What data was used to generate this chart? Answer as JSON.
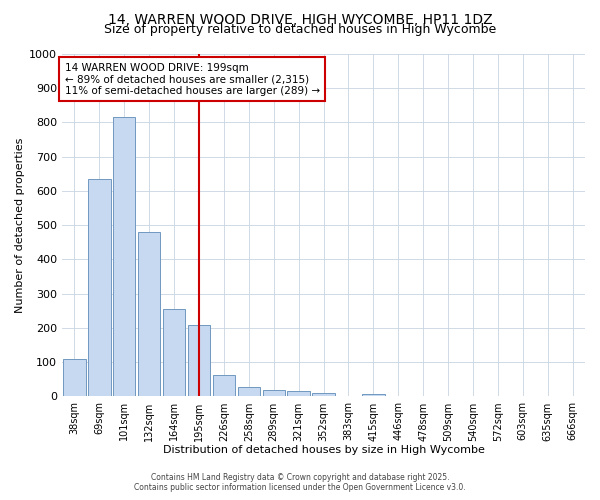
{
  "title": "14, WARREN WOOD DRIVE, HIGH WYCOMBE, HP11 1DZ",
  "subtitle": "Size of property relative to detached houses in High Wycombe",
  "xlabel": "Distribution of detached houses by size in High Wycombe",
  "ylabel": "Number of detached properties",
  "bar_labels": [
    "38sqm",
    "69sqm",
    "101sqm",
    "132sqm",
    "164sqm",
    "195sqm",
    "226sqm",
    "258sqm",
    "289sqm",
    "321sqm",
    "352sqm",
    "383sqm",
    "415sqm",
    "446sqm",
    "478sqm",
    "509sqm",
    "540sqm",
    "572sqm",
    "603sqm",
    "635sqm",
    "666sqm"
  ],
  "bar_values": [
    110,
    635,
    815,
    480,
    255,
    210,
    63,
    28,
    20,
    15,
    9,
    0,
    8,
    0,
    0,
    0,
    0,
    0,
    0,
    0,
    0
  ],
  "bar_color": "#c6d9f0",
  "bar_edge_color": "#7099c0",
  "reference_line_index": 5,
  "reference_line_color": "#cc0000",
  "annotation_line1": "14 WARREN WOOD DRIVE: 199sqm",
  "annotation_line2": "← 89% of detached houses are smaller (2,315)",
  "annotation_line3": "11% of semi-detached houses are larger (289) →",
  "annotation_box_color": "#ffffff",
  "annotation_box_edge": "#cc0000",
  "ylim": [
    0,
    1000
  ],
  "yticks": [
    0,
    100,
    200,
    300,
    400,
    500,
    600,
    700,
    800,
    900,
    1000
  ],
  "footer_line1": "Contains HM Land Registry data © Crown copyright and database right 2025.",
  "footer_line2": "Contains public sector information licensed under the Open Government Licence v3.0.",
  "bg_color": "#ffffff",
  "plot_bg_color": "#ffffff",
  "grid_color": "#c8d4e0",
  "title_fontsize": 10,
  "subtitle_fontsize": 9
}
